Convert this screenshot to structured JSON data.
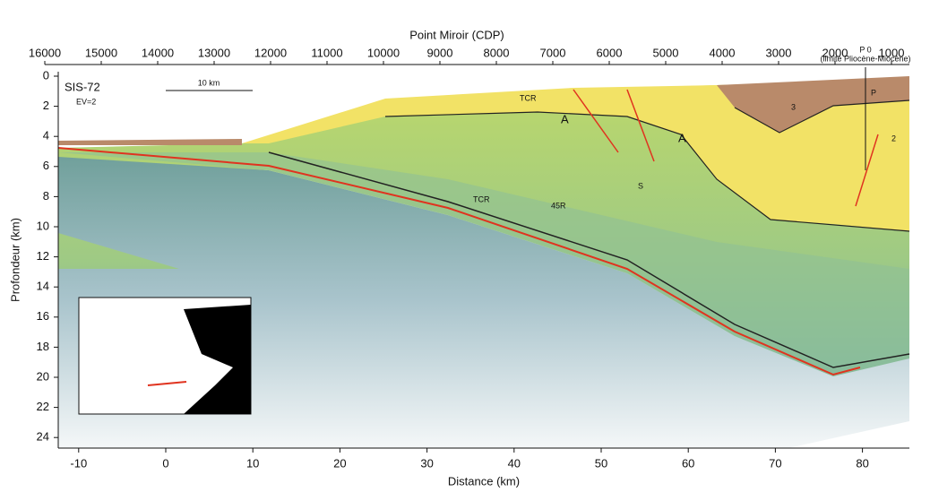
{
  "header": {
    "top_axis_title": "Point Miroir (CDP)",
    "left_axis_title": "Profondeur (km)",
    "bottom_axis_title": "Distance (km)"
  },
  "top_axis": {
    "ticks": [
      16000,
      15000,
      14000,
      13000,
      12000,
      11000,
      10000,
      9000,
      8000,
      7000,
      6000,
      5000,
      4000,
      3000,
      2000,
      1000
    ]
  },
  "left_axis": {
    "ticks": [
      0,
      2,
      4,
      6,
      8,
      10,
      12,
      14,
      16,
      18,
      20,
      22,
      24
    ]
  },
  "bottom_axis": {
    "ticks": [
      -10,
      0,
      10,
      20,
      30,
      40,
      50,
      60,
      70,
      80
    ]
  },
  "labels": {
    "profile": "SIS-72",
    "exaggeration": "EV=2",
    "scale_bar": "10 km",
    "marker": "P 0",
    "marker_note": "(limite Pliocène-Miocène)",
    "units": [
      "A",
      "A",
      "S",
      "TCR",
      "TCR",
      "45R",
      "P",
      "3",
      "2"
    ]
  }
}
